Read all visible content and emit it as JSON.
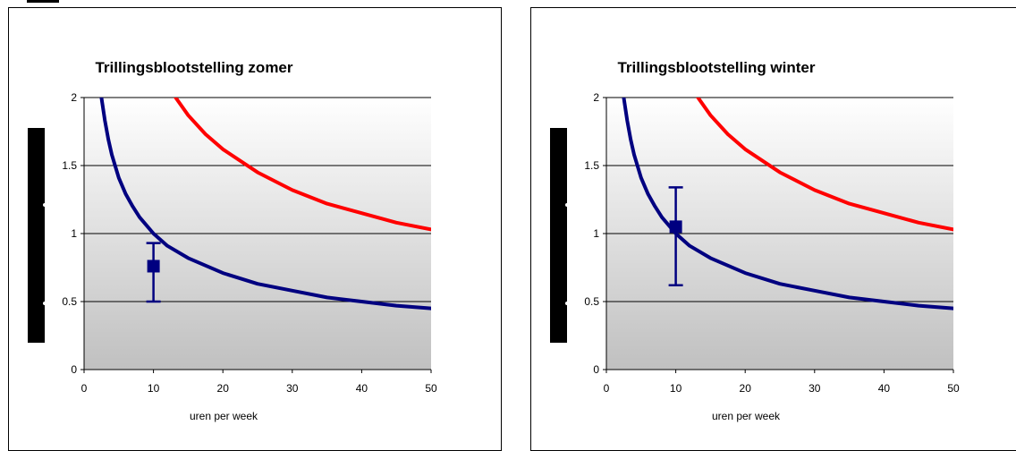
{
  "colors": {
    "plot_gradient_top": "#ffffff",
    "plot_gradient_bottom": "#c0c0c0",
    "blue_curve": "#000080",
    "red_curve": "#ff0000",
    "grid": "#000000"
  },
  "chart_data": [
    {
      "type": "line",
      "title": "Trillingsblootstelling zomer",
      "xlabel": "uren per week",
      "ylabel": "",
      "xlim": [
        0,
        50
      ],
      "ylim": [
        0,
        2
      ],
      "x_ticks": [
        "0",
        "10",
        "20",
        "30",
        "40",
        "50"
      ],
      "y_ticks": [
        "0",
        "0.5",
        "1",
        "1.5",
        "2"
      ],
      "grid": "horizontal",
      "series": [
        {
          "color": "#000080",
          "x": [
            2.5,
            3,
            3.5,
            4,
            5,
            6,
            7,
            8,
            10,
            12,
            15,
            20,
            25,
            30,
            35,
            40,
            45,
            50
          ],
          "y": [
            2.0,
            1.83,
            1.69,
            1.58,
            1.41,
            1.29,
            1.2,
            1.12,
            1.0,
            0.91,
            0.82,
            0.71,
            0.63,
            0.58,
            0.53,
            0.5,
            0.47,
            0.45
          ]
        },
        {
          "color": "#ff0000",
          "x": [
            12.5,
            15,
            17.5,
            20,
            25,
            30,
            35,
            40,
            45,
            50
          ],
          "y": [
            2.05,
            1.87,
            1.73,
            1.62,
            1.45,
            1.32,
            1.22,
            1.15,
            1.08,
            1.03
          ]
        }
      ],
      "error_point": {
        "x": 10,
        "y": 0.76,
        "y_low": 0.5,
        "y_high": 0.93
      }
    },
    {
      "type": "line",
      "title": "Trillingsblootstelling winter",
      "xlabel": "uren per week",
      "ylabel": "",
      "xlim": [
        0,
        50
      ],
      "ylim": [
        0,
        2
      ],
      "x_ticks": [
        "0",
        "10",
        "20",
        "30",
        "40",
        "50"
      ],
      "y_ticks": [
        "0",
        "0.5",
        "1",
        "1.5",
        "2"
      ],
      "grid": "horizontal",
      "series": [
        {
          "color": "#000080",
          "x": [
            2.5,
            3,
            3.5,
            4,
            5,
            6,
            7,
            8,
            10,
            12,
            15,
            20,
            25,
            30,
            35,
            40,
            45,
            50
          ],
          "y": [
            2.0,
            1.83,
            1.69,
            1.58,
            1.41,
            1.29,
            1.2,
            1.12,
            1.0,
            0.91,
            0.82,
            0.71,
            0.63,
            0.58,
            0.53,
            0.5,
            0.47,
            0.45
          ]
        },
        {
          "color": "#ff0000",
          "x": [
            12.5,
            15,
            17.5,
            20,
            25,
            30,
            35,
            40,
            45,
            50
          ],
          "y": [
            2.05,
            1.87,
            1.73,
            1.62,
            1.45,
            1.32,
            1.22,
            1.15,
            1.08,
            1.03
          ]
        }
      ],
      "error_point": {
        "x": 10,
        "y": 1.05,
        "y_low": 0.62,
        "y_high": 1.34
      }
    }
  ]
}
